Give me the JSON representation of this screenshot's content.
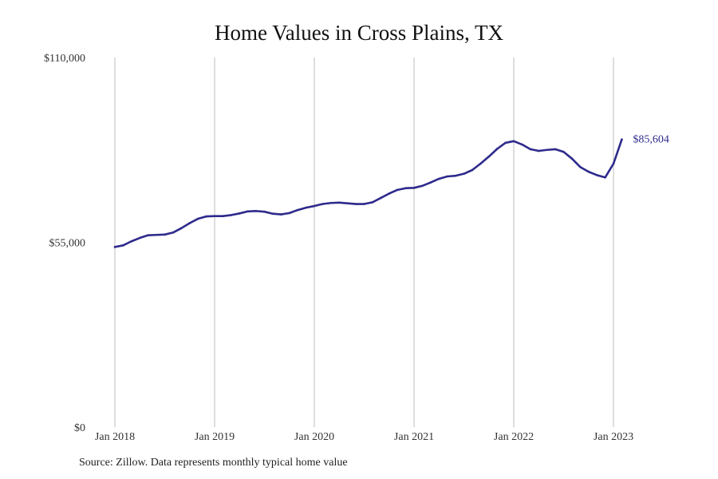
{
  "chart_data": {
    "type": "line",
    "title": "Home Values in Cross Plains, TX",
    "xlabel": "",
    "ylabel": "",
    "ylim": [
      0,
      110000
    ],
    "y_ticks": [
      0,
      55000,
      110000
    ],
    "y_tick_labels": [
      "$0",
      "$55,000",
      "$110,000"
    ],
    "x_ticks": [
      "2018-01",
      "2019-01",
      "2020-01",
      "2021-01",
      "2022-01",
      "2023-01"
    ],
    "x_tick_labels": [
      "Jan 2018",
      "Jan 2019",
      "Jan 2020",
      "Jan 2021",
      "Jan 2022",
      "Jan 2023"
    ],
    "grid": "vertical",
    "line_color": "#2e2a8c",
    "end_label": "$85,604",
    "series": [
      {
        "x": [
          "2018-01",
          "2018-02",
          "2018-03",
          "2018-04",
          "2018-05",
          "2018-06",
          "2018-07",
          "2018-08",
          "2018-09",
          "2018-10",
          "2018-11",
          "2018-12",
          "2019-01",
          "2019-02",
          "2019-03",
          "2019-04",
          "2019-05",
          "2019-06",
          "2019-07",
          "2019-08",
          "2019-09",
          "2019-10",
          "2019-11",
          "2019-12",
          "2020-01",
          "2020-02",
          "2020-03",
          "2020-04",
          "2020-05",
          "2020-06",
          "2020-07",
          "2020-08",
          "2020-09",
          "2020-10",
          "2020-11",
          "2020-12",
          "2021-01",
          "2021-02",
          "2021-03",
          "2021-04",
          "2021-05",
          "2021-06",
          "2021-07",
          "2021-08",
          "2021-09",
          "2021-10",
          "2021-11",
          "2021-12",
          "2022-01",
          "2022-02",
          "2022-03",
          "2022-04",
          "2022-05",
          "2022-06",
          "2022-07",
          "2022-08",
          "2022-09",
          "2022-10",
          "2022-11",
          "2022-12",
          "2023-01",
          "2023-02"
        ],
        "values": [
          53600,
          54100,
          55300,
          56300,
          57100,
          57200,
          57300,
          57900,
          59200,
          60700,
          62000,
          62700,
          62800,
          62800,
          63100,
          63600,
          64200,
          64300,
          64100,
          63500,
          63300,
          63700,
          64600,
          65300,
          65800,
          66400,
          66700,
          66800,
          66600,
          66400,
          66400,
          66900,
          68200,
          69500,
          70600,
          71100,
          71200,
          71800,
          72800,
          73900,
          74600,
          74800,
          75400,
          76500,
          78400,
          80500,
          82800,
          84600,
          85100,
          84100,
          82700,
          82200,
          82500,
          82700,
          81900,
          79900,
          77400,
          76000,
          75000,
          74300,
          78400,
          85604
        ]
      }
    ]
  },
  "source_note": "Source: Zillow. Data represents monthly typical home value"
}
